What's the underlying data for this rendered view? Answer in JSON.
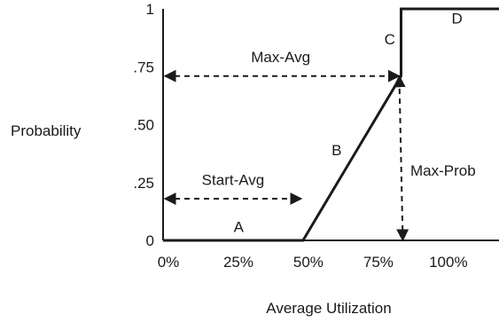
{
  "chart_data": {
    "type": "line",
    "title": "",
    "xlabel": "Average Utilization",
    "ylabel": "Probability",
    "xlim": [
      0,
      1.2
    ],
    "ylim": [
      0,
      1
    ],
    "x_ticks": [
      {
        "value": 0,
        "label": "0%"
      },
      {
        "value": 0.25,
        "label": "25%"
      },
      {
        "value": 0.5,
        "label": "50%"
      },
      {
        "value": 0.75,
        "label": "75%"
      },
      {
        "value": 1.0,
        "label": "100%"
      }
    ],
    "y_ticks": [
      {
        "value": 0,
        "label": "0"
      },
      {
        "value": 0.25,
        "label": ".25"
      },
      {
        "value": 0.5,
        "label": ".50"
      },
      {
        "value": 0.75,
        "label": ".75"
      },
      {
        "value": 1.0,
        "label": "1"
      }
    ],
    "grid": false,
    "series": [
      {
        "points": [
          {
            "x": 0,
            "y": 0
          },
          {
            "x": 0.5,
            "y": 0
          },
          {
            "x": 0.85,
            "y": 0.71
          },
          {
            "x": 0.85,
            "y": 1.0
          },
          {
            "x": 1.2,
            "y": 1.0
          }
        ]
      }
    ],
    "segment_labels": [
      {
        "label": "A",
        "x": 0.27,
        "y": 0.06
      },
      {
        "label": "B",
        "x": 0.62,
        "y": 0.39
      },
      {
        "label": "C",
        "x": 0.81,
        "y": 0.87
      },
      {
        "label": "D",
        "x": 1.05,
        "y": 0.96
      }
    ],
    "annotations": [
      {
        "label": "Max-Avg",
        "type": "h-double-arrow",
        "from": [
          0.0,
          0.71
        ],
        "to": [
          0.85,
          0.71
        ],
        "text_at": [
          0.42,
          0.77
        ]
      },
      {
        "label": "Start-Avg",
        "type": "h-double-arrow",
        "from": [
          0.0,
          0.18
        ],
        "to": [
          0.5,
          0.18
        ],
        "text_at": [
          0.25,
          0.24
        ]
      },
      {
        "label": "Max-Prob",
        "type": "v-double-arrow",
        "from": [
          0.85,
          0.0
        ],
        "to": [
          0.85,
          0.71
        ],
        "text_at": [
          1.0,
          0.28
        ]
      }
    ]
  }
}
